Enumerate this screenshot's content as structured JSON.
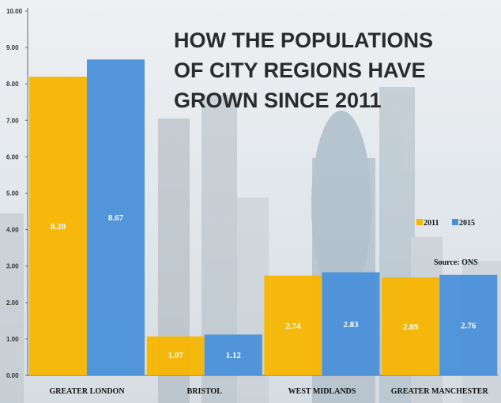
{
  "chart_data": {
    "type": "bar",
    "title": "HOW THE POPULATIONS OF CITY REGIONS HAVE GROWN SINCE 2011",
    "title_lines": [
      "HOW THE POPULATIONS",
      "OF CITY REGIONS HAVE",
      "GROWN SINCE 2011"
    ],
    "source": "Source: ONS",
    "categories": [
      "GREATER LONDON",
      "BRISTOL",
      "WEST MIDLANDS",
      "GREATER MANCHESTER"
    ],
    "series": [
      {
        "name": "2011",
        "color": "#f7b500",
        "values": [
          8.2,
          1.07,
          2.74,
          2.69
        ],
        "labels": [
          "8.20",
          "1.07",
          "2.74",
          "2.69"
        ]
      },
      {
        "name": "2015",
        "color": "#4a90d9",
        "values": [
          8.67,
          1.12,
          2.83,
          2.76
        ],
        "labels": [
          "8.67",
          "1.12",
          "2.83",
          "2.76"
        ]
      }
    ],
    "yticks": [
      "0.00",
      "1.00",
      "2.00",
      "3.00",
      "4.00",
      "5.00",
      "6.00",
      "7.00",
      "8.00",
      "9.00",
      "10.00"
    ],
    "ylim": [
      0,
      10
    ],
    "legend_position": "right, mid-height",
    "grid": false,
    "xlabel": "",
    "ylabel": ""
  }
}
